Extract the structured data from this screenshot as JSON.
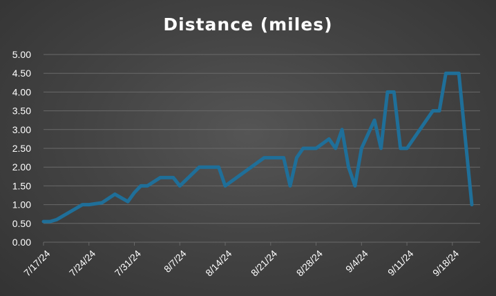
{
  "chart_data": {
    "type": "line",
    "title": "Distance (miles)",
    "xlabel": "",
    "ylabel": "",
    "ylim": [
      0,
      5
    ],
    "yticks": [
      "0.00",
      "0.50",
      "1.00",
      "1.50",
      "2.00",
      "2.50",
      "3.00",
      "3.50",
      "4.00",
      "4.50",
      "5.00"
    ],
    "xticks": [
      "7/17/24",
      "7/24/24",
      "7/31/24",
      "8/7/24",
      "8/14/24",
      "8/21/24",
      "8/28/24",
      "9/4/24",
      "9/11/24",
      "9/18/24"
    ],
    "xlim": [
      "7/17/24",
      "9/21/24"
    ],
    "grid": true,
    "line_color": "#1f6f99",
    "series": [
      {
        "x": [
          "7/17/24",
          "7/18/24",
          "7/19/24",
          "7/21/24",
          "7/23/24",
          "7/24/24",
          "7/26/24",
          "7/28/24",
          "7/30/24",
          "7/31/24",
          "8/1/24",
          "8/2/24",
          "8/4/24",
          "8/6/24",
          "8/7/24",
          "8/10/24",
          "8/13/24",
          "8/14/24",
          "8/20/24",
          "8/23/24",
          "8/24/24",
          "8/25/24",
          "8/26/24",
          "8/27/24",
          "8/28/24",
          "8/30/24",
          "8/31/24",
          "9/1/24",
          "9/2/24",
          "9/3/24",
          "9/4/24",
          "9/6/24",
          "9/7/24",
          "9/8/24",
          "9/9/24",
          "9/10/24",
          "9/11/24",
          "9/15/24",
          "9/16/24",
          "9/17/24",
          "9/18/24",
          "9/19/24",
          "9/21/24"
        ],
        "y": [
          0.55,
          0.55,
          0.6,
          0.8,
          1.0,
          1.0,
          1.05,
          1.28,
          1.08,
          1.32,
          1.5,
          1.5,
          1.72,
          1.72,
          1.5,
          2.0,
          2.0,
          1.5,
          2.25,
          2.25,
          1.5,
          2.25,
          2.5,
          2.5,
          2.5,
          2.75,
          2.5,
          3.0,
          2.0,
          1.5,
          2.5,
          3.25,
          2.5,
          4.0,
          4.0,
          2.5,
          2.5,
          3.5,
          3.5,
          4.5,
          4.5,
          4.5,
          1.0
        ]
      }
    ]
  }
}
